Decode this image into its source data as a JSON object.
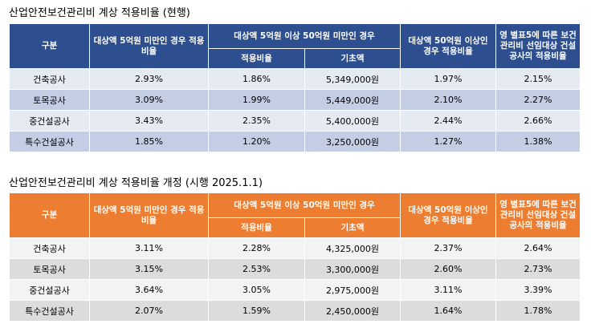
{
  "tables": [
    {
      "title": "산업안전보건관리비 계상 적용비율 (현행)",
      "headers": {
        "category": "구분",
        "under5": "대상액 5억원 미만인 경우 적용비율",
        "mid": "대상액 5억원 이상 50억원 미만인 경우",
        "mid_rate": "적용비율",
        "mid_base": "기초액",
        "over50": "대상액 50억원 이상인 경우 적용비율",
        "annex": "영 별표5에 따른 보건관리비 선임대상 건설공사의 적용비율"
      },
      "rows": [
        {
          "category": "건축공사",
          "under5": "2.93%",
          "mid_rate": "1.86%",
          "mid_base": "5,349,000원",
          "over50": "1.97%",
          "annex": "2.15%"
        },
        {
          "category": "토목공사",
          "under5": "3.09%",
          "mid_rate": "1.99%",
          "mid_base": "5,449,000원",
          "over50": "2.10%",
          "annex": "2.27%"
        },
        {
          "category": "중건설공사",
          "under5": "3.43%",
          "mid_rate": "2.35%",
          "mid_base": "5,400,000원",
          "over50": "2.44%",
          "annex": "2.66%"
        },
        {
          "category": "특수건설공사",
          "under5": "1.85%",
          "mid_rate": "1.20%",
          "mid_base": "3,250,000원",
          "over50": "1.27%",
          "annex": "1.38%"
        }
      ]
    },
    {
      "title": "산업안전보건관리비 계상 적용비율 개정 (시행 2025.1.1)",
      "headers": {
        "category": "구분",
        "under5": "대상액 5억원 미만인 경우 적용비율",
        "mid": "대상액 5억원 이상 50억원 미만인 경우",
        "mid_rate": "적용비율",
        "mid_base": "기초액",
        "over50": "대상액 50억원 이상인 경우 적용비율",
        "annex": "영 별표5에 따른 보건관리비 선임대상 건설공사의 적용비율"
      },
      "rows": [
        {
          "category": "건축공사",
          "under5": "3.11%",
          "mid_rate": "2.28%",
          "mid_base": "4,325,000원",
          "over50": "2.37%",
          "annex": "2.64%"
        },
        {
          "category": "토목공사",
          "under5": "3.15%",
          "mid_rate": "2.53%",
          "mid_base": "3,300,000원",
          "over50": "2.60%",
          "annex": "2.73%"
        },
        {
          "category": "중건설공사",
          "under5": "3.64%",
          "mid_rate": "3.05%",
          "mid_base": "2,975,000원",
          "over50": "3.11%",
          "annex": "3.39%"
        },
        {
          "category": "특수건설공사",
          "under5": "2.07%",
          "mid_rate": "1.59%",
          "mid_base": "2,450,000원",
          "over50": "1.64%",
          "annex": "1.78%"
        }
      ]
    }
  ],
  "colors": {
    "current_header": "#2e4f8f",
    "current_row_light": "#e6eaf3",
    "current_row_dark": "#c3cde4",
    "revised_header": "#ed7d31",
    "revised_row_light": "#f3f3f3",
    "revised_row_dark": "#dcdcdc"
  }
}
